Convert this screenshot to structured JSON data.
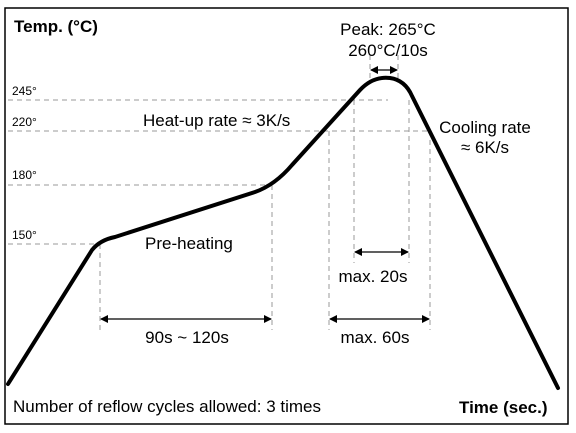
{
  "figure": {
    "y_axis_label": "Temp. (°C)",
    "x_axis_label": "Time (sec.)",
    "footer_note": "Number of reflow cycles allowed: 3 times",
    "temperature_ticks": [
      {
        "key": "t245",
        "label": "245°"
      },
      {
        "key": "t220",
        "label": "220°"
      },
      {
        "key": "t180",
        "label": "180°"
      },
      {
        "key": "t150",
        "label": "150°"
      }
    ],
    "annotations": {
      "peak_line1": "Peak: 265°C",
      "peak_line2": "260°C/10s",
      "heat_up_rate": "Heat-up rate ≈ 3K/s",
      "cooling_line1": "Cooling rate",
      "cooling_line2": "≈ 6K/s",
      "pre_heating": "Pre-heating",
      "preheat_duration": "90s ~ 120s",
      "max20": "max. 20s",
      "max60": "max. 60s"
    }
  }
}
